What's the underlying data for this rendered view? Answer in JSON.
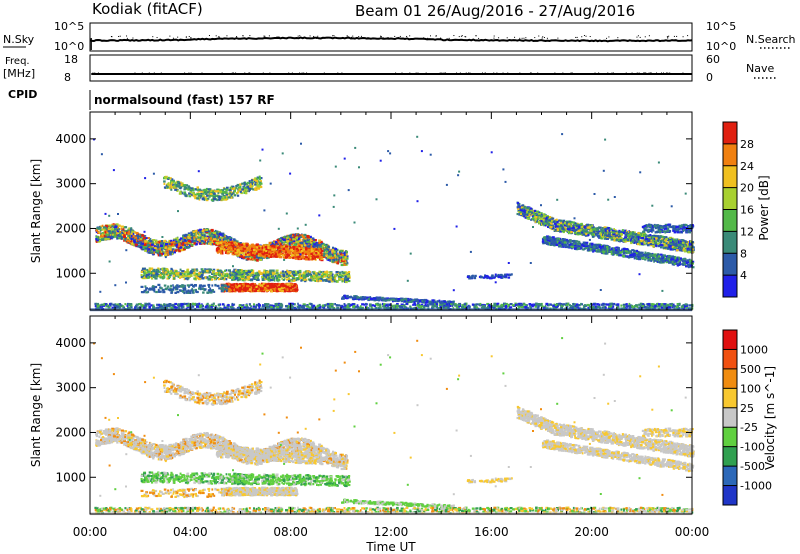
{
  "header": {
    "station": "Kodiak (fitACF)",
    "beam_title": "Beam 01 26/Aug/2016 - 27/Aug/2016"
  },
  "top_panels": {
    "nsky": {
      "label": "N.Sky",
      "tick_high": "10^5",
      "tick_low": "10^0"
    },
    "nsearch": {
      "label": "N.Search",
      "tick_high": "10^5",
      "tick_low": "10^0"
    },
    "freq": {
      "label_line1": "Freq.",
      "label_line2": "[MHz]",
      "tick_high": "18",
      "tick_low": "8"
    },
    "nave": {
      "label": "Nave",
      "tick_high": "60",
      "tick_low": "0"
    },
    "cpid": {
      "label": "CPID",
      "value": "normalsound (fast) 157 RF"
    }
  },
  "chart_data": [
    {
      "type": "heatmap",
      "name": "power",
      "ylabel": "Slant Range [km]",
      "yticks": [
        1000,
        2000,
        3000,
        4000
      ],
      "ylim": [
        180,
        4600
      ],
      "xticks": [
        "00:00",
        "04:00",
        "08:00",
        "12:00",
        "16:00",
        "20:00",
        "00:00"
      ],
      "xlim_hours": [
        0,
        24
      ],
      "colorbar": {
        "label": "Power [dB]",
        "ticks": [
          "4",
          "8",
          "12",
          "16",
          "20",
          "24",
          "28"
        ],
        "colors": [
          "#2020e8",
          "#2c5aa8",
          "#3a8a78",
          "#52b848",
          "#a8d030",
          "#f0c020",
          "#f08010",
          "#e02010"
        ]
      }
    },
    {
      "type": "heatmap",
      "name": "velocity",
      "ylabel": "Slant Range [km]",
      "yticks": [
        1000,
        2000,
        3000,
        4000
      ],
      "ylim": [
        180,
        4600
      ],
      "xticks": [
        "00:00",
        "04:00",
        "08:00",
        "12:00",
        "16:00",
        "20:00",
        "00:00"
      ],
      "xlabel": "Time UT",
      "colorbar": {
        "label": "Velocity [m s^-1]",
        "ticks": [
          "1000",
          "500",
          "100",
          "25",
          "-25",
          "-100",
          "-500",
          "-1000"
        ],
        "colors": [
          "#2036c8",
          "#2c68b8",
          "#30a050",
          "#60d040",
          "#c8c8c8",
          "#f8c830",
          "#f08c10",
          "#f05010",
          "#e01010"
        ]
      }
    }
  ]
}
